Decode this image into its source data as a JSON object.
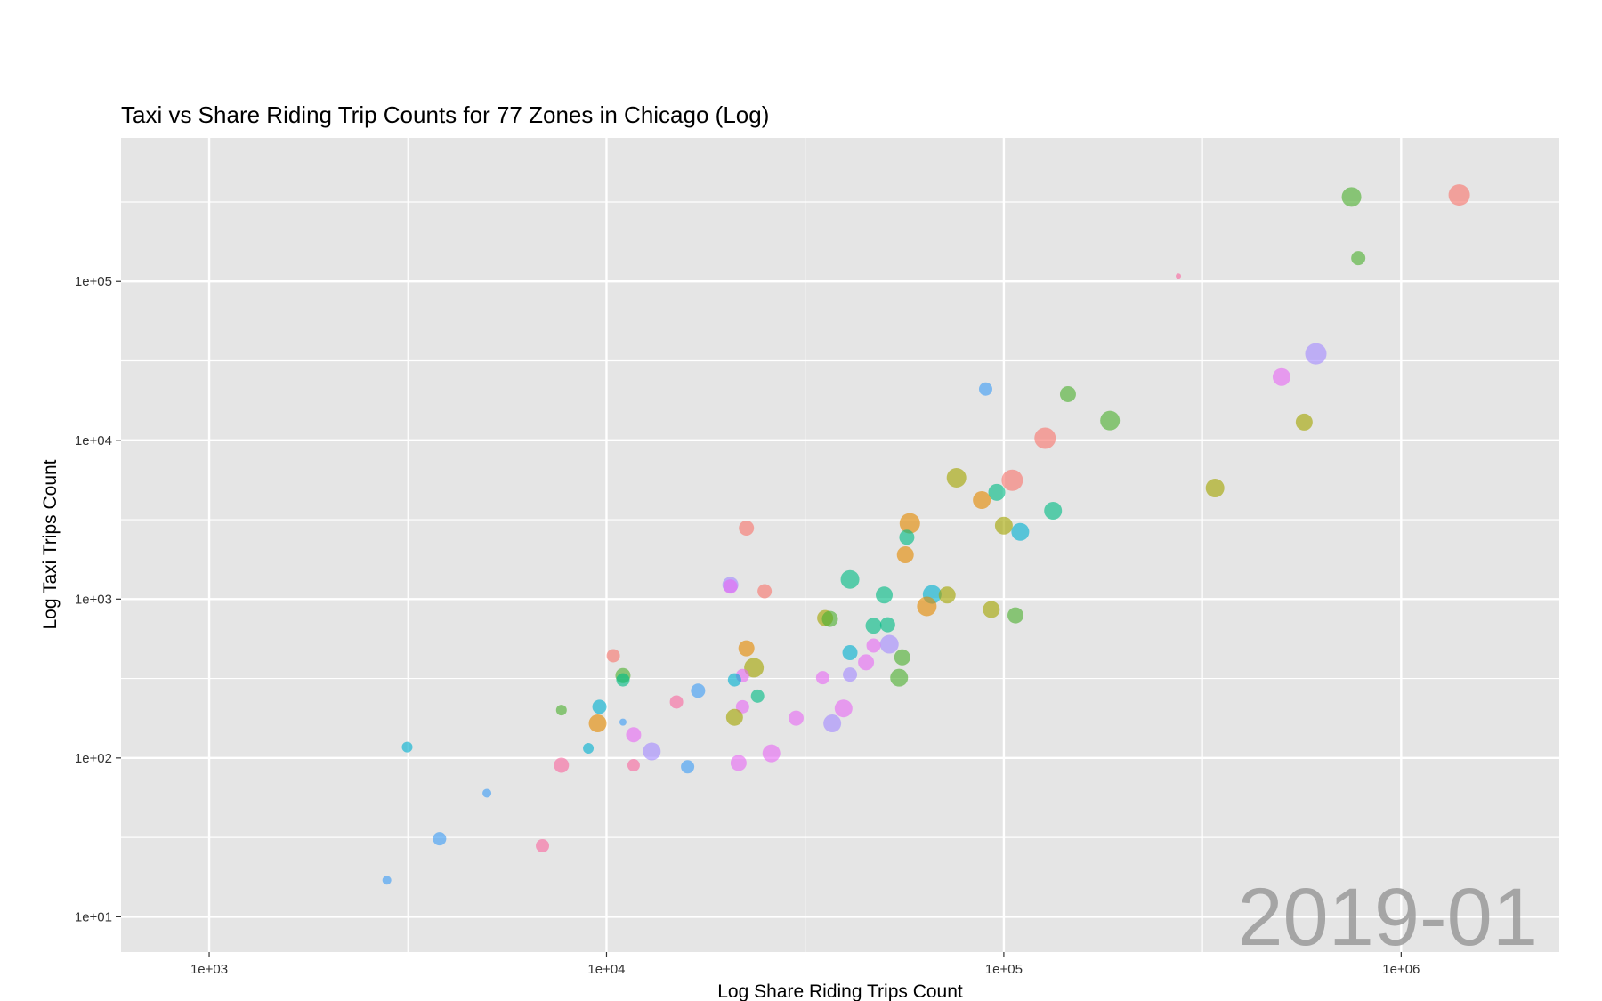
{
  "chart_data": {
    "type": "scatter",
    "title": "Taxi vs Share Riding Trip Counts for 77 Zones in Chicago (Log)",
    "xlabel": "Log Share Riding Trips Count",
    "ylabel": "Log Taxi Trips Count",
    "x_scale": "log10",
    "y_scale": "log10",
    "xlim": [
      600,
      2500000
    ],
    "ylim": [
      6,
      800000
    ],
    "x_ticks": [
      1000,
      10000,
      100000,
      1000000
    ],
    "x_tick_labels": [
      "1e+03",
      "1e+04",
      "1e+05",
      "1e+06"
    ],
    "y_ticks": [
      10,
      100,
      1000,
      10000,
      100000
    ],
    "y_tick_labels": [
      "1e+01",
      "1e+02",
      "1e+03",
      "1e+04",
      "1e+05"
    ],
    "grid": true,
    "legend": "none",
    "period_label": "2019-01",
    "colors": {
      "panel": "#e5e5e5",
      "grid": "#ffffff",
      "red": "#f8766d",
      "orange": "#e38900",
      "olive": "#a3a500",
      "green": "#4db031",
      "teal": "#00bc84",
      "cyan": "#00b0d0",
      "blue": "#3d9cf5",
      "purple": "#a58aff",
      "magenta": "#e76bf3",
      "pink": "#f8699f"
    },
    "points": [
      {
        "x": 1400000,
        "y": 350000,
        "size": 12,
        "color": "red"
      },
      {
        "x": 750000,
        "y": 340000,
        "size": 11,
        "color": "green"
      },
      {
        "x": 780000,
        "y": 140000,
        "size": 8,
        "color": "green"
      },
      {
        "x": 275000,
        "y": 108000,
        "size": 3,
        "color": "pink"
      },
      {
        "x": 610000,
        "y": 35000,
        "size": 12,
        "color": "purple"
      },
      {
        "x": 500000,
        "y": 25000,
        "size": 10,
        "color": "magenta"
      },
      {
        "x": 570000,
        "y": 13000,
        "size": 9.5,
        "color": "olive"
      },
      {
        "x": 90000,
        "y": 21000,
        "size": 7.5,
        "color": "blue"
      },
      {
        "x": 145000,
        "y": 19500,
        "size": 9,
        "color": "green"
      },
      {
        "x": 185000,
        "y": 13300,
        "size": 11,
        "color": "green"
      },
      {
        "x": 127000,
        "y": 10300,
        "size": 12,
        "color": "red"
      },
      {
        "x": 76000,
        "y": 5800,
        "size": 11,
        "color": "olive"
      },
      {
        "x": 105000,
        "y": 5600,
        "size": 12,
        "color": "red"
      },
      {
        "x": 96000,
        "y": 4700,
        "size": 9.5,
        "color": "teal"
      },
      {
        "x": 88000,
        "y": 4200,
        "size": 10,
        "color": "orange"
      },
      {
        "x": 340000,
        "y": 5000,
        "size": 10.5,
        "color": "olive"
      },
      {
        "x": 133000,
        "y": 3600,
        "size": 10,
        "color": "teal"
      },
      {
        "x": 58000,
        "y": 3000,
        "size": 11.5,
        "color": "orange"
      },
      {
        "x": 100000,
        "y": 2900,
        "size": 10,
        "color": "olive"
      },
      {
        "x": 110000,
        "y": 2650,
        "size": 10,
        "color": "cyan"
      },
      {
        "x": 22500,
        "y": 2800,
        "size": 8.5,
        "color": "red"
      },
      {
        "x": 57000,
        "y": 2450,
        "size": 8.5,
        "color": "teal"
      },
      {
        "x": 56500,
        "y": 1900,
        "size": 9.5,
        "color": "orange"
      },
      {
        "x": 41000,
        "y": 1330,
        "size": 10.5,
        "color": "teal"
      },
      {
        "x": 20500,
        "y": 1230,
        "size": 9,
        "color": "purple"
      },
      {
        "x": 20500,
        "y": 1200,
        "size": 8,
        "color": "magenta"
      },
      {
        "x": 25000,
        "y": 1120,
        "size": 8,
        "color": "red"
      },
      {
        "x": 50000,
        "y": 1060,
        "size": 9.5,
        "color": "teal"
      },
      {
        "x": 66000,
        "y": 1070,
        "size": 10.5,
        "color": "cyan"
      },
      {
        "x": 72000,
        "y": 1060,
        "size": 9.5,
        "color": "olive"
      },
      {
        "x": 64000,
        "y": 900,
        "size": 11,
        "color": "orange"
      },
      {
        "x": 93000,
        "y": 860,
        "size": 9.5,
        "color": "olive"
      },
      {
        "x": 107000,
        "y": 790,
        "size": 9,
        "color": "green"
      },
      {
        "x": 35500,
        "y": 760,
        "size": 9,
        "color": "olive"
      },
      {
        "x": 36500,
        "y": 750,
        "size": 9,
        "color": "green"
      },
      {
        "x": 47000,
        "y": 680,
        "size": 9,
        "color": "teal"
      },
      {
        "x": 51000,
        "y": 690,
        "size": 8.5,
        "color": "teal"
      },
      {
        "x": 51500,
        "y": 520,
        "size": 10.5,
        "color": "purple"
      },
      {
        "x": 47000,
        "y": 510,
        "size": 8,
        "color": "magenta"
      },
      {
        "x": 22500,
        "y": 490,
        "size": 9,
        "color": "orange"
      },
      {
        "x": 10400,
        "y": 440,
        "size": 7.5,
        "color": "red"
      },
      {
        "x": 41000,
        "y": 460,
        "size": 8.5,
        "color": "cyan"
      },
      {
        "x": 55500,
        "y": 430,
        "size": 9,
        "color": "green"
      },
      {
        "x": 45000,
        "y": 400,
        "size": 9,
        "color": "magenta"
      },
      {
        "x": 23500,
        "y": 370,
        "size": 11,
        "color": "olive"
      },
      {
        "x": 11000,
        "y": 330,
        "size": 8.5,
        "color": "green"
      },
      {
        "x": 11000,
        "y": 310,
        "size": 7.5,
        "color": "teal"
      },
      {
        "x": 22000,
        "y": 330,
        "size": 7.5,
        "color": "magenta"
      },
      {
        "x": 21000,
        "y": 310,
        "size": 7.5,
        "color": "cyan"
      },
      {
        "x": 41000,
        "y": 335,
        "size": 8,
        "color": "purple"
      },
      {
        "x": 35000,
        "y": 320,
        "size": 7.5,
        "color": "magenta"
      },
      {
        "x": 54500,
        "y": 320,
        "size": 10,
        "color": "green"
      },
      {
        "x": 17000,
        "y": 265,
        "size": 8,
        "color": "blue"
      },
      {
        "x": 24000,
        "y": 245,
        "size": 7.5,
        "color": "teal"
      },
      {
        "x": 15000,
        "y": 225,
        "size": 7.5,
        "color": "pink"
      },
      {
        "x": 7700,
        "y": 200,
        "size": 6,
        "color": "green"
      },
      {
        "x": 9600,
        "y": 210,
        "size": 8,
        "color": "cyan"
      },
      {
        "x": 22000,
        "y": 210,
        "size": 7.5,
        "color": "magenta"
      },
      {
        "x": 39500,
        "y": 205,
        "size": 10,
        "color": "magenta"
      },
      {
        "x": 21000,
        "y": 180,
        "size": 9.5,
        "color": "olive"
      },
      {
        "x": 30000,
        "y": 178,
        "size": 8.5,
        "color": "magenta"
      },
      {
        "x": 9500,
        "y": 165,
        "size": 10,
        "color": "orange"
      },
      {
        "x": 11000,
        "y": 168,
        "size": 4,
        "color": "blue"
      },
      {
        "x": 37000,
        "y": 165,
        "size": 10,
        "color": "purple"
      },
      {
        "x": 11700,
        "y": 140,
        "size": 8.5,
        "color": "magenta"
      },
      {
        "x": 3150,
        "y": 117,
        "size": 6,
        "color": "cyan"
      },
      {
        "x": 9000,
        "y": 115,
        "size": 6,
        "color": "cyan"
      },
      {
        "x": 13000,
        "y": 110,
        "size": 10,
        "color": "purple"
      },
      {
        "x": 26000,
        "y": 107,
        "size": 10,
        "color": "magenta"
      },
      {
        "x": 7700,
        "y": 90,
        "size": 8.5,
        "color": "pink"
      },
      {
        "x": 11700,
        "y": 90,
        "size": 7,
        "color": "pink"
      },
      {
        "x": 16000,
        "y": 88,
        "size": 7.5,
        "color": "blue"
      },
      {
        "x": 21500,
        "y": 93,
        "size": 9,
        "color": "magenta"
      },
      {
        "x": 5000,
        "y": 60,
        "size": 5,
        "color": "blue"
      },
      {
        "x": 3800,
        "y": 31,
        "size": 7.5,
        "color": "blue"
      },
      {
        "x": 6900,
        "y": 28,
        "size": 7.5,
        "color": "pink"
      },
      {
        "x": 2800,
        "y": 17,
        "size": 5,
        "color": "blue"
      }
    ]
  }
}
